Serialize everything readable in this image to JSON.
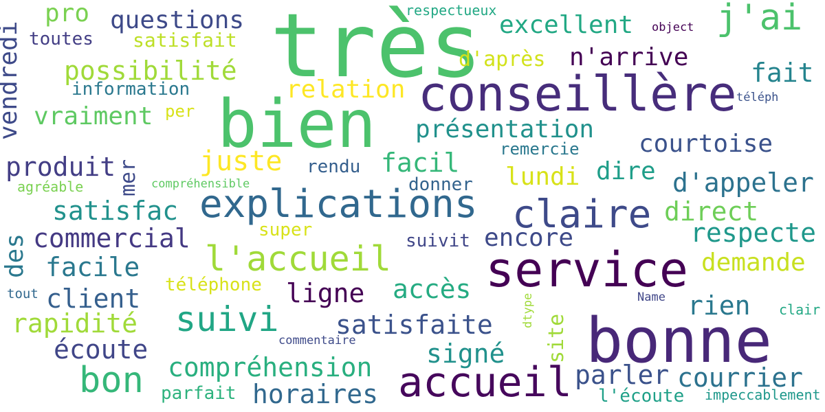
{
  "words": [
    {
      "text": "très",
      "color": "#4cc26c"
    },
    {
      "text": "bien",
      "color": "#4cc26c"
    },
    {
      "text": "bonne",
      "color": "#482878"
    },
    {
      "text": "service",
      "color": "#440154"
    },
    {
      "text": "conseillère",
      "color": "#472d7b"
    },
    {
      "text": "accueil",
      "color": "#46085c"
    },
    {
      "text": "explications",
      "color": "#31688e"
    },
    {
      "text": "claire",
      "color": "#3e4a89"
    },
    {
      "text": "l'accueil",
      "color": "#a0da39"
    },
    {
      "text": "suivi",
      "color": "#21a685"
    },
    {
      "text": "bon",
      "color": "#35b779"
    },
    {
      "text": "j'ai",
      "color": "#4cc26c"
    },
    {
      "text": "questions",
      "color": "#3e4a89"
    },
    {
      "text": "pro",
      "color": "#7ad151"
    },
    {
      "text": "excellent",
      "color": "#22a884"
    },
    {
      "text": "n'arrive",
      "color": "#440154"
    },
    {
      "text": "d'après",
      "color": "#d2e21b"
    },
    {
      "text": "fait",
      "color": "#25848e"
    },
    {
      "text": "possibilité",
      "color": "#a0da39"
    },
    {
      "text": "relation",
      "color": "#fde725"
    },
    {
      "text": "information",
      "color": "#2a788e"
    },
    {
      "text": "vraiment",
      "color": "#5ec962"
    },
    {
      "text": "présentation",
      "color": "#21918c"
    },
    {
      "text": "courtoise",
      "color": "#3b528b"
    },
    {
      "text": "produit",
      "color": "#433e85"
    },
    {
      "text": "juste",
      "color": "#fde725"
    },
    {
      "text": "facil",
      "color": "#35b779"
    },
    {
      "text": "rendu",
      "color": "#355f8d"
    },
    {
      "text": "lundi",
      "color": "#d8e219"
    },
    {
      "text": "dire",
      "color": "#1f9e89"
    },
    {
      "text": "d'appeler",
      "color": "#2c728e"
    },
    {
      "text": "remercie",
      "color": "#2a788e"
    },
    {
      "text": "donner",
      "color": "#33638d"
    },
    {
      "text": "satisfac",
      "color": "#21918c"
    },
    {
      "text": "direct",
      "color": "#6ece58"
    },
    {
      "text": "respecte",
      "color": "#1f988b"
    },
    {
      "text": "commercial",
      "color": "#443983"
    },
    {
      "text": "encore",
      "color": "#3e4a89"
    },
    {
      "text": "suivit",
      "color": "#404688"
    },
    {
      "text": "super",
      "color": "#d8e219"
    },
    {
      "text": "demande",
      "color": "#c8e020"
    },
    {
      "text": "facile",
      "color": "#2a788e"
    },
    {
      "text": "client",
      "color": "#355f8d"
    },
    {
      "text": "ligne",
      "color": "#440154"
    },
    {
      "text": "accès",
      "color": "#25ab82"
    },
    {
      "text": "téléphone",
      "color": "#d8e219"
    },
    {
      "text": "rien",
      "color": "#2a788e"
    },
    {
      "text": "rapidité",
      "color": "#a0da39"
    },
    {
      "text": "satisfaite",
      "color": "#3b528b"
    },
    {
      "text": "écoute",
      "color": "#404688"
    },
    {
      "text": "signé",
      "color": "#21918c"
    },
    {
      "text": "compréhension",
      "color": "#29af7f"
    },
    {
      "text": "parler",
      "color": "#3b528b"
    },
    {
      "text": "courrier",
      "color": "#2c728e"
    },
    {
      "text": "horaires",
      "color": "#31688e"
    },
    {
      "text": "parfait",
      "color": "#2db27d"
    },
    {
      "text": "l'écoute",
      "color": "#1fa088"
    },
    {
      "text": "toutes",
      "color": "#433e85"
    },
    {
      "text": "satisfait",
      "color": "#bddf26"
    },
    {
      "text": "respectueux",
      "color": "#22a884"
    },
    {
      "text": "object",
      "color": "#440154"
    },
    {
      "text": "per",
      "color": "#d8e219"
    },
    {
      "text": "téléph",
      "color": "#3b528b"
    },
    {
      "text": "agréable",
      "color": "#7ad151"
    },
    {
      "text": "compréhensible",
      "color": "#5ec962"
    },
    {
      "text": "tout",
      "color": "#31688e"
    },
    {
      "text": "Name",
      "color": "#404688"
    },
    {
      "text": "clair",
      "color": "#22a884"
    },
    {
      "text": "commentaire",
      "color": "#3e4a89"
    },
    {
      "text": "impeccablement",
      "color": "#1f988b"
    },
    {
      "text": "vendredi",
      "color": "#3e4a89"
    },
    {
      "text": "mer",
      "color": "#3e4a89"
    },
    {
      "text": "des",
      "color": "#2a788e"
    },
    {
      "text": "site",
      "color": "#a0da39"
    },
    {
      "text": "dtype",
      "color": "#a0da39"
    }
  ]
}
